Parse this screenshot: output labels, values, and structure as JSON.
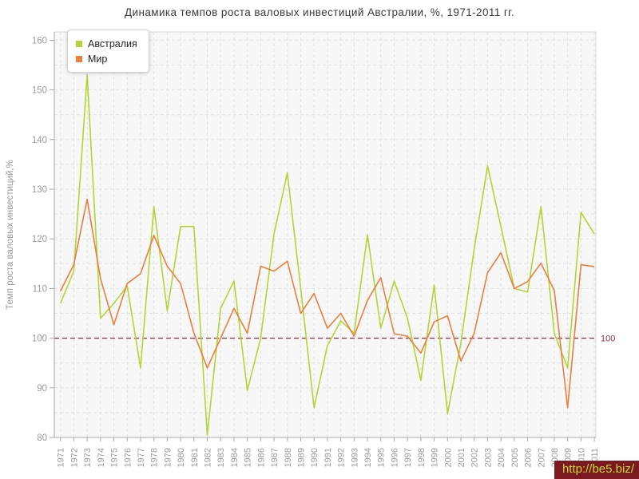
{
  "title": "Динамика темпов роста валовых инвестиций Австралии, %, 1971-2011 гг.",
  "y_axis_title": "Темп роста валовых инвестиций,%",
  "watermark": "http://be5.biz/",
  "legend": [
    {
      "label": "Австралия",
      "color": "#b3d435"
    },
    {
      "label": "Мир",
      "color": "#e87f3e"
    }
  ],
  "reference_line": {
    "value": 100,
    "label": "100",
    "color": "#8b2e3f"
  },
  "style": {
    "plot_bg": "#f7f7f7",
    "plot_border": "#d9d9d9",
    "grid_color": "#e1e1e1",
    "axis_color": "#a8a8a8",
    "tick_label_color": "#9a9a9a",
    "title_color": "#3a3a3a"
  },
  "chart_data": {
    "type": "line",
    "x": [
      1971,
      1972,
      1973,
      1974,
      1975,
      1976,
      1977,
      1978,
      1979,
      1980,
      1981,
      1982,
      1983,
      1984,
      1985,
      1986,
      1987,
      1988,
      1989,
      1990,
      1991,
      1992,
      1993,
      1994,
      1995,
      1996,
      1997,
      1998,
      1999,
      2000,
      2001,
      2002,
      2003,
      2004,
      2005,
      2006,
      2007,
      2008,
      2009,
      2010,
      2011
    ],
    "series": [
      {
        "name": "Австралия",
        "color": "#b3d435",
        "values": [
          107,
          113.5,
          153,
          104,
          107,
          110.5,
          94,
          126.5,
          105.5,
          122.5,
          122.5,
          80.5,
          106,
          111.5,
          89.5,
          100,
          121,
          133.3,
          110,
          86,
          98.5,
          103.5,
          101,
          120.8,
          102,
          111.5,
          104,
          91.5,
          110.7,
          84.8,
          99,
          118,
          134.7,
          122.5,
          110,
          109.3,
          126.5,
          101,
          94,
          125.3,
          121
        ]
      },
      {
        "name": "Мир",
        "color": "#e87f3e",
        "values": [
          109.5,
          114.8,
          128,
          112,
          102.7,
          111,
          113,
          120.7,
          114.5,
          111,
          101,
          94,
          100,
          106,
          101,
          114.5,
          113.5,
          115.5,
          105,
          109,
          102,
          105,
          100.4,
          107.6,
          112.2,
          100.9,
          100.4,
          97,
          103.3,
          104.5,
          95.4,
          101,
          113.2,
          117.2,
          110,
          111.4,
          115.1,
          109.6,
          86,
          114.8,
          114.4
        ]
      }
    ],
    "ylim": [
      80,
      161.5
    ],
    "yticks": [
      80,
      90,
      100,
      110,
      120,
      130,
      140,
      150,
      160
    ],
    "grid": true,
    "legend_position": "top-left"
  }
}
